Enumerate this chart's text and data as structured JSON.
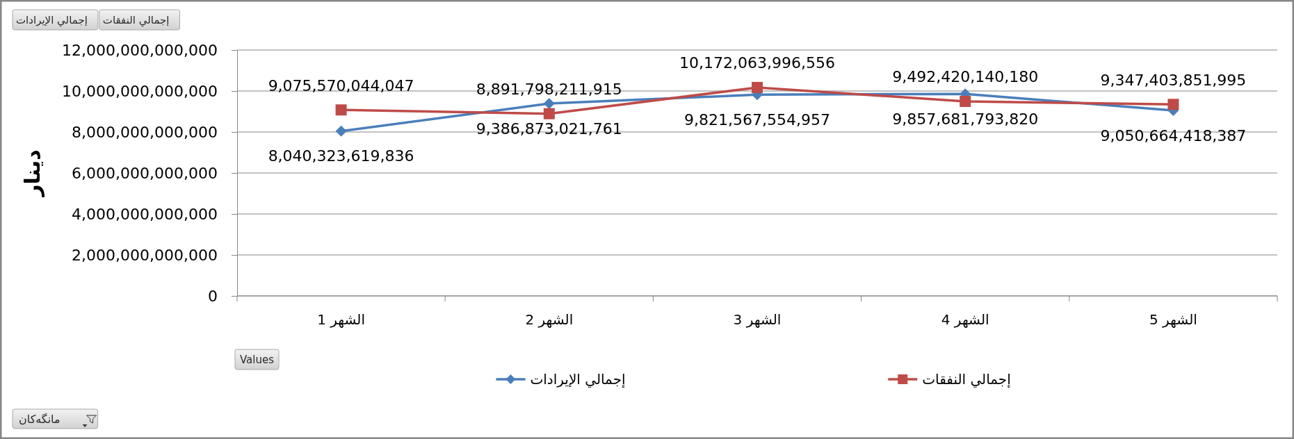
{
  "chart_data": {
    "type": "line",
    "ylabel": "دينار",
    "categories": [
      "الشهر 1",
      "الشهر 2",
      "الشهر 3",
      "الشهر 4",
      "الشهر 5"
    ],
    "series": [
      {
        "name": "إجمالي الإيرادات",
        "color": "#4a7ebb",
        "marker": "diamond",
        "values": [
          8040323619836,
          9386873021761,
          9821567554957,
          9857681793820,
          9050664418387
        ],
        "value_labels": [
          "8,040,323,619,836",
          "9,386,873,021,761",
          "9,821,567,554,957",
          "9,857,681,793,820",
          "9,050,664,418,387"
        ]
      },
      {
        "name": "إجمالي النفقات",
        "color": "#be4b48",
        "marker": "square",
        "values": [
          9075570044047,
          8891798211915,
          10172063996556,
          9492420140180,
          9347403851995
        ],
        "value_labels": [
          "9,075,570,044,047",
          "8,891,798,211,915",
          "10,172,063,996,556",
          "9,492,420,140,180",
          "9,347,403,851,995"
        ]
      }
    ],
    "ylim": [
      0,
      12000000000000
    ],
    "yticks": [
      0,
      {
        "value": 2000000000000,
        "label": "2,000,000,000,000"
      },
      {
        "value": 4000000000000,
        "label": "4,000,000,000,000"
      },
      {
        "value": 6000000000000,
        "label": "6,000,000,000,000"
      },
      {
        "value": 8000000000000,
        "label": "8,000,000,000,000"
      },
      {
        "value": 10000000000000,
        "label": "10,000,000,000,000"
      },
      {
        "value": 12000000000000,
        "label": "12,000,000,000,000"
      }
    ],
    "grid": "y",
    "legend": "bottom",
    "annotations": [
      "إجمالي الإيرادات",
      "إجمالي النفقات",
      "Values",
      "مانگەکان"
    ]
  }
}
